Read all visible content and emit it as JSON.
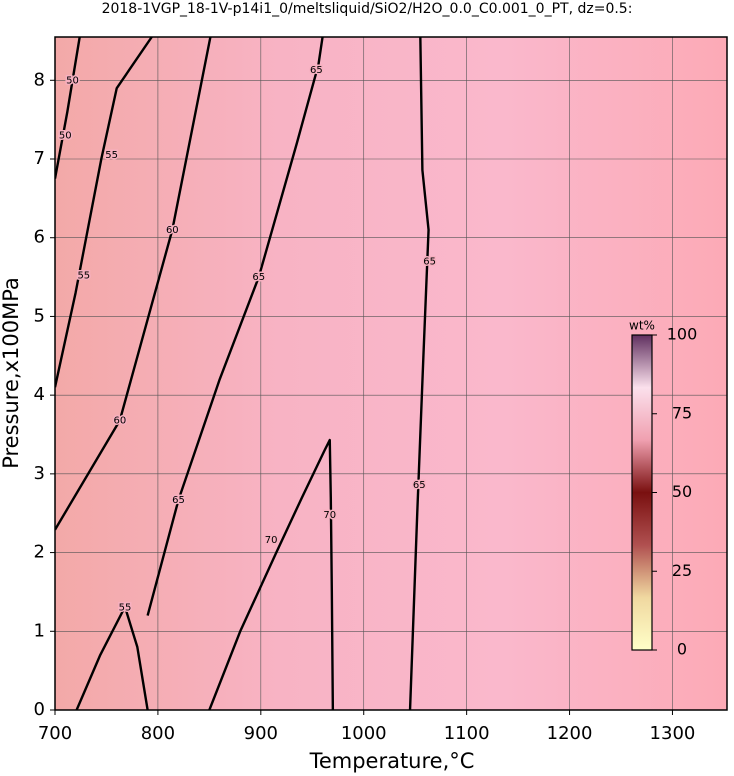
{
  "chart_data": {
    "type": "contour",
    "title": "2018-1VGP_18-1V-p14i1_0/meltsliquid/SiO2/H2O_0.0_C0.001_0_PT, dz=0.5:",
    "x_label": "Temperature,°C",
    "y_label": "Pressure,x100MPa",
    "xlim": [
      700,
      1353
    ],
    "ylim": [
      0,
      8.55
    ],
    "xticks": [
      700,
      800,
      900,
      1000,
      1100,
      1200,
      1300
    ],
    "yticks": [
      0,
      1,
      2,
      3,
      4,
      5,
      6,
      7,
      8
    ],
    "grid": true,
    "background_colors": [
      "#f3a9a8",
      "#f8b3c4",
      "#fab8cc",
      "#fcaab6"
    ],
    "contour_color": "#000000",
    "contours": [
      {
        "level": 50,
        "x": [
          700,
          712,
          724
        ],
        "y": [
          6.75,
          7.6,
          8.55
        ]
      },
      {
        "level": 55,
        "x": [
          700,
          720,
          745,
          760,
          794
        ],
        "y": [
          4.1,
          5.3,
          7.0,
          7.9,
          8.55
        ]
      },
      {
        "level": 55,
        "x": [
          721,
          744,
          768
        ],
        "y": [
          0,
          0.7,
          1.31
        ]
      },
      {
        "level": 60,
        "x": [
          700,
          763,
          814,
          851
        ],
        "y": [
          2.29,
          3.68,
          6.1,
          8.55
        ]
      },
      {
        "level": 60,
        "x": [
          790,
          780,
          768
        ],
        "y": [
          0,
          0.8,
          1.31
        ]
      },
      {
        "level": 65,
        "x": [
          790,
          820,
          860,
          898,
          935,
          956,
          960
        ],
        "y": [
          1.2,
          2.67,
          4.2,
          5.5,
          7.2,
          8.2,
          8.55
        ]
      },
      {
        "level": 70,
        "x": [
          850,
          880,
          915,
          940,
          962,
          967,
          968,
          969,
          970
        ],
        "y": [
          0,
          1.0,
          2.0,
          2.7,
          3.3,
          3.43,
          2.7,
          1.5,
          0
        ]
      },
      {
        "level": 65,
        "x": [
          1045,
          1052,
          1058,
          1063,
          1057,
          1055
        ],
        "y": [
          0,
          2.5,
          4.5,
          6.1,
          6.86,
          8.55
        ]
      }
    ],
    "contour_labels": [
      {
        "value": 50,
        "x": 717,
        "y": 8.0
      },
      {
        "value": 50,
        "x": 710,
        "y": 7.3
      },
      {
        "value": 55,
        "x": 755,
        "y": 7.05
      },
      {
        "value": 55,
        "x": 728,
        "y": 5.52
      },
      {
        "value": 55,
        "x": 768,
        "y": 1.3
      },
      {
        "value": 60,
        "x": 814,
        "y": 6.1
      },
      {
        "value": 60,
        "x": 763,
        "y": 3.68
      },
      {
        "value": 65,
        "x": 820,
        "y": 2.67
      },
      {
        "value": 65,
        "x": 898,
        "y": 5.5
      },
      {
        "value": 65,
        "x": 954,
        "y": 8.13
      },
      {
        "value": 70,
        "x": 910,
        "y": 2.16
      },
      {
        "value": 70,
        "x": 967,
        "y": 2.48
      },
      {
        "value": 65,
        "x": 1054,
        "y": 2.86
      },
      {
        "value": 65,
        "x": 1064,
        "y": 5.7
      }
    ],
    "colorbar": {
      "label": "wt%",
      "lim": [
        0,
        100
      ],
      "ticks": [
        0,
        25,
        50,
        75,
        100
      ],
      "colors": [
        "#ffffc8",
        "#f0d8a0",
        "#b05050",
        "#7a1010",
        "#f0a0b0",
        "#fbe0ec",
        "#603060"
      ]
    }
  }
}
